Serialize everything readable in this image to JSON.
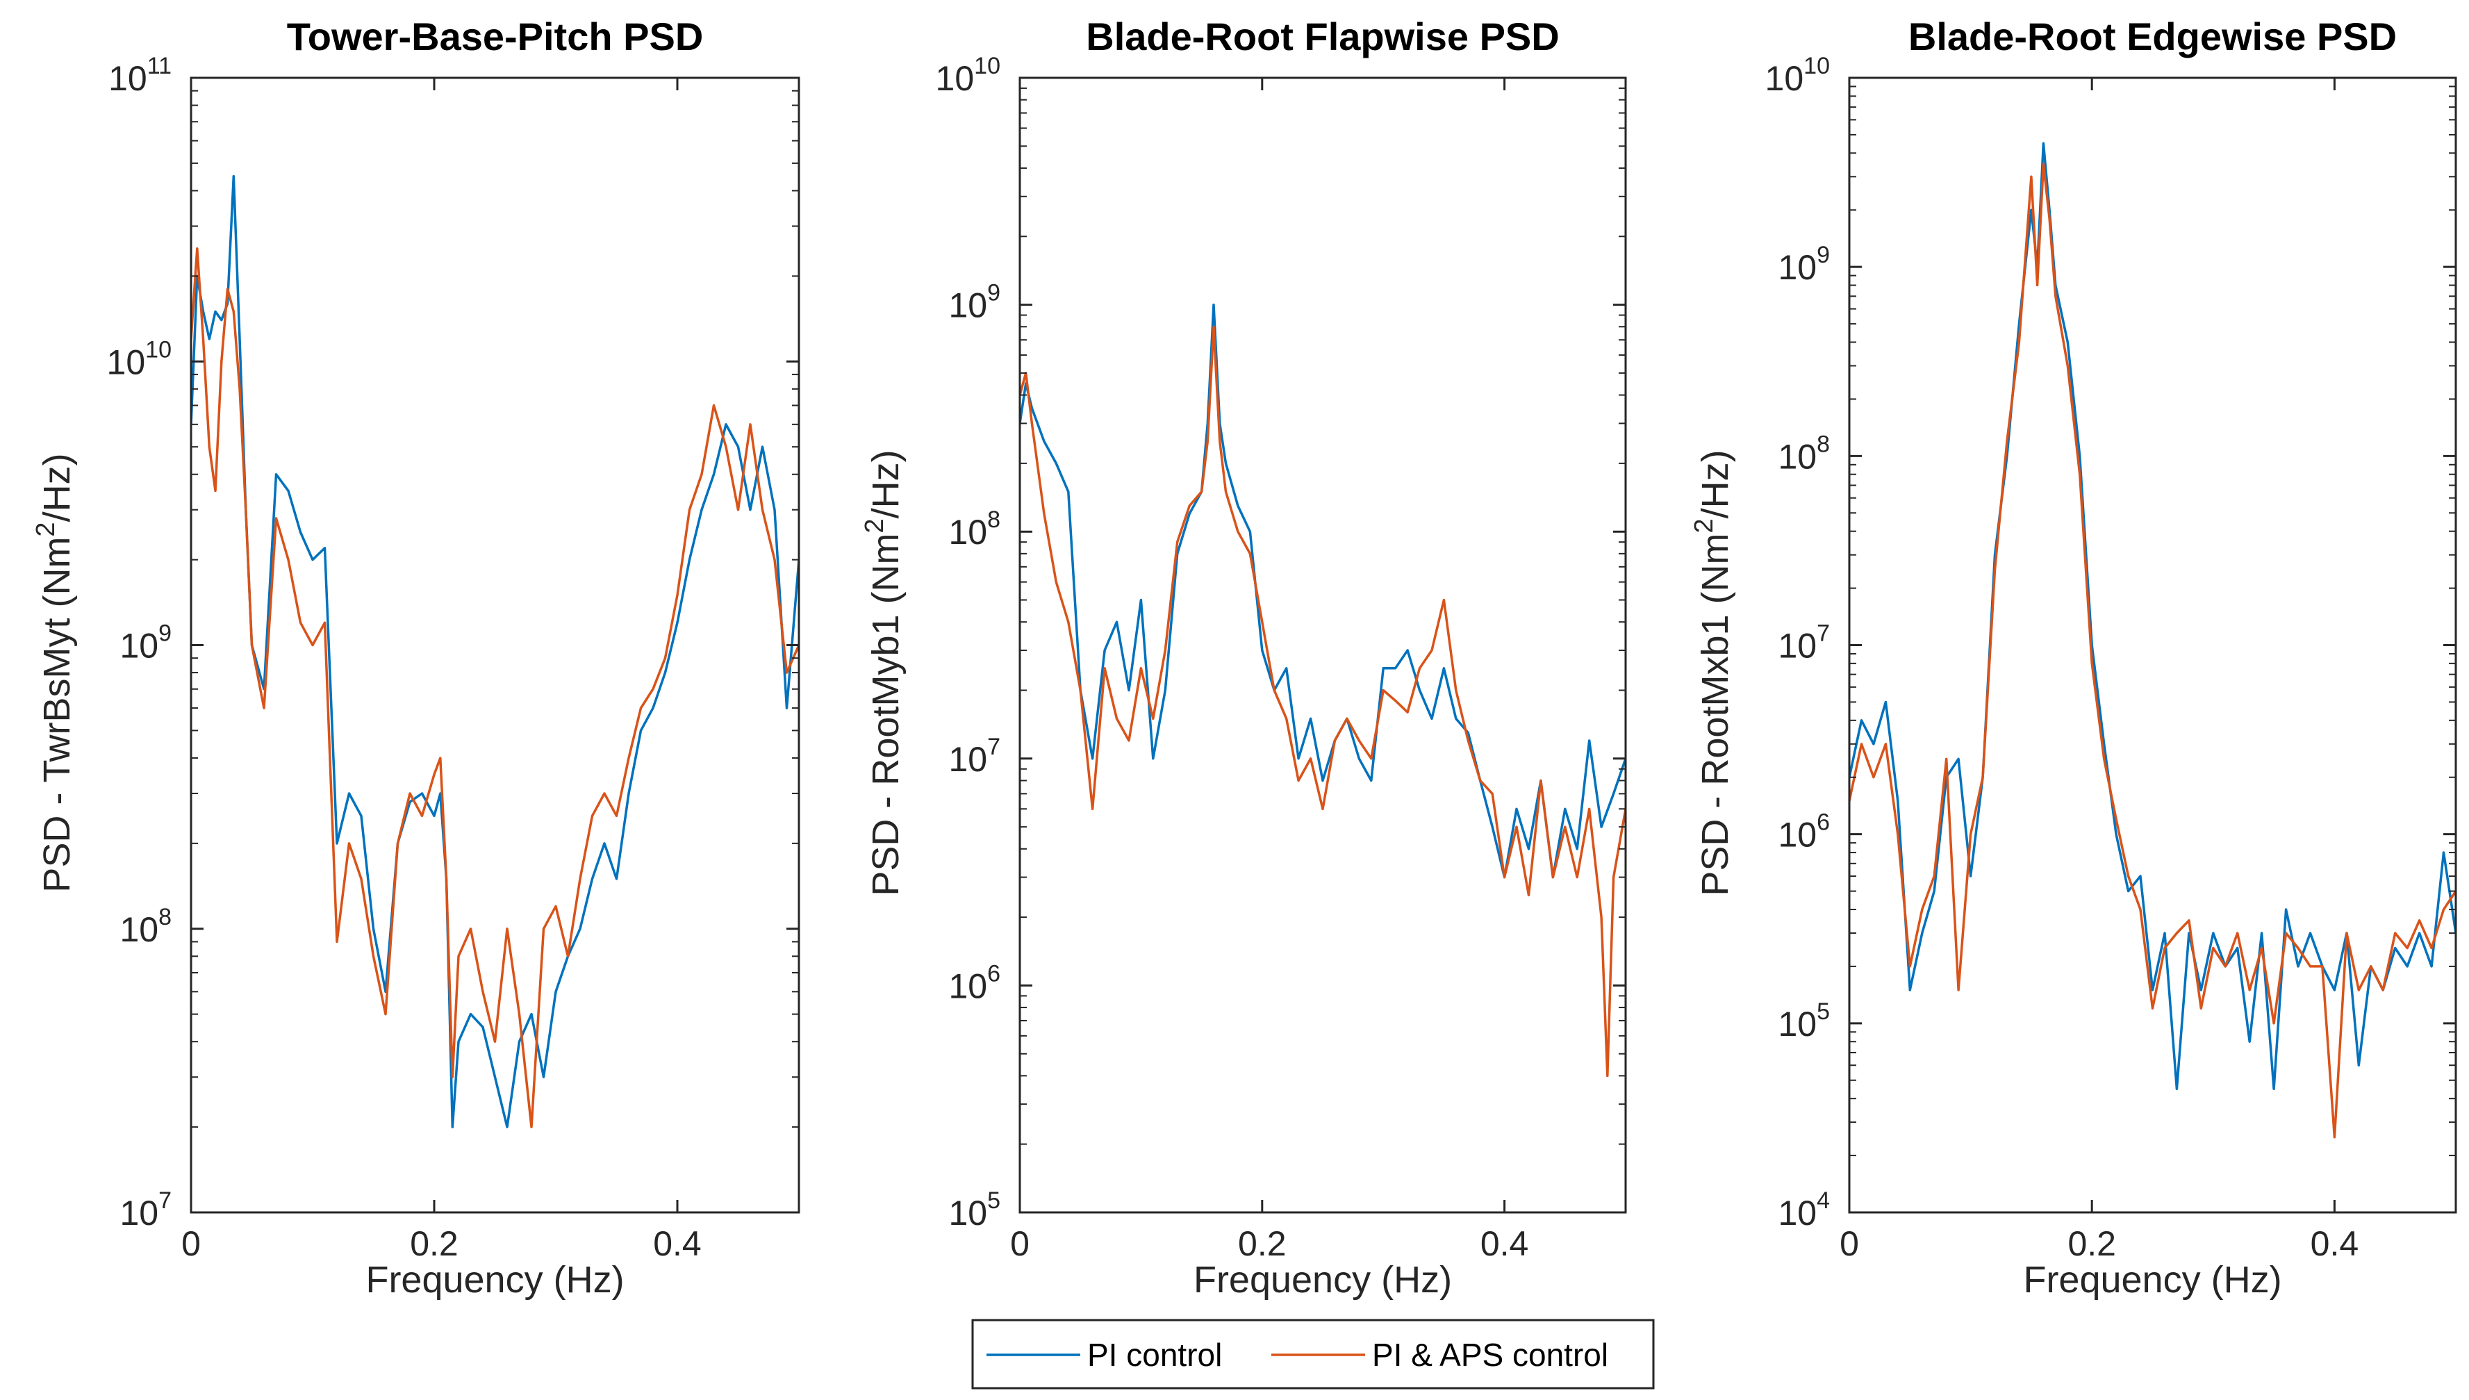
{
  "colors": {
    "pi": "#0072BD",
    "aps": "#D95319",
    "axis": "#262626"
  },
  "legend": {
    "items": [
      {
        "label": "PI control",
        "color": "#0072BD"
      },
      {
        "label": "PI & APS control",
        "color": "#D95319"
      }
    ]
  },
  "chart_data": [
    {
      "type": "line",
      "title": "Tower-Base-Pitch PSD",
      "xlabel": "Frequency (Hz)",
      "ylabel": {
        "prefix": "PSD - TwrBsMyt (Nm",
        "sup": "2",
        "suffix": "/Hz)"
      },
      "xlim": [
        0,
        0.5
      ],
      "yscale": "log",
      "ylim_exp": [
        7,
        11
      ],
      "xticks": [
        0,
        0.2,
        0.4
      ],
      "xtick_labels": [
        "0",
        "0.2",
        "0.4"
      ],
      "ytick_labels": [
        {
          "base": "10",
          "exp": "7"
        },
        {
          "base": "10",
          "exp": "8"
        },
        {
          "base": "10",
          "exp": "9"
        },
        {
          "base": "10",
          "exp": "10"
        },
        {
          "base": "10",
          "exp": "11"
        }
      ],
      "series": [
        {
          "name": "PI control",
          "x": [
            0,
            0.005,
            0.01,
            0.015,
            0.02,
            0.025,
            0.03,
            0.035,
            0.04,
            0.045,
            0.05,
            0.06,
            0.07,
            0.08,
            0.09,
            0.1,
            0.11,
            0.12,
            0.13,
            0.14,
            0.15,
            0.16,
            0.17,
            0.18,
            0.19,
            0.2,
            0.205,
            0.21,
            0.215,
            0.22,
            0.23,
            0.24,
            0.25,
            0.26,
            0.27,
            0.28,
            0.29,
            0.3,
            0.31,
            0.32,
            0.33,
            0.34,
            0.35,
            0.36,
            0.37,
            0.38,
            0.39,
            0.4,
            0.41,
            0.42,
            0.43,
            0.44,
            0.45,
            0.46,
            0.47,
            0.48,
            0.49,
            0.5
          ],
          "y": [
            6000000000.0,
            20000000000.0,
            15000000000.0,
            12000000000.0,
            15000000000.0,
            14000000000.0,
            16000000000.0,
            45000000000.0,
            12000000000.0,
            3000000000.0,
            1000000000.0,
            700000000.0,
            4000000000.0,
            3500000000.0,
            2500000000.0,
            2000000000.0,
            2200000000.0,
            200000000.0,
            300000000.0,
            250000000.0,
            100000000.0,
            60000000.0,
            200000000.0,
            280000000.0,
            300000000.0,
            250000000.0,
            300000000.0,
            150000000.0,
            20000000.0,
            40000000.0,
            50000000.0,
            45000000.0,
            30000000.0,
            20000000.0,
            40000000.0,
            50000000.0,
            30000000.0,
            60000000.0,
            80000000.0,
            100000000.0,
            150000000.0,
            200000000.0,
            150000000.0,
            300000000.0,
            500000000.0,
            600000000.0,
            800000000.0,
            1200000000.0,
            2000000000.0,
            3000000000.0,
            4000000000.0,
            6000000000.0,
            5000000000.0,
            3000000000.0,
            5000000000.0,
            3000000000.0,
            600000000.0,
            2000000000.0
          ]
        },
        {
          "name": "PI & APS control",
          "x": [
            0,
            0.005,
            0.01,
            0.015,
            0.02,
            0.025,
            0.03,
            0.035,
            0.04,
            0.045,
            0.05,
            0.06,
            0.07,
            0.08,
            0.09,
            0.1,
            0.11,
            0.12,
            0.13,
            0.14,
            0.15,
            0.16,
            0.17,
            0.18,
            0.19,
            0.2,
            0.205,
            0.21,
            0.215,
            0.22,
            0.23,
            0.24,
            0.25,
            0.26,
            0.27,
            0.28,
            0.29,
            0.3,
            0.31,
            0.32,
            0.33,
            0.34,
            0.35,
            0.36,
            0.37,
            0.38,
            0.39,
            0.4,
            0.41,
            0.42,
            0.43,
            0.44,
            0.45,
            0.46,
            0.47,
            0.48,
            0.49,
            0.5
          ],
          "y": [
            12000000000.0,
            25000000000.0,
            12000000000.0,
            5000000000.0,
            3500000000.0,
            10000000000.0,
            18000000000.0,
            15000000000.0,
            8000000000.0,
            3000000000.0,
            1000000000.0,
            600000000.0,
            2800000000.0,
            2000000000.0,
            1200000000.0,
            1000000000.0,
            1200000000.0,
            90000000.0,
            200000000.0,
            150000000.0,
            80000000.0,
            50000000.0,
            200000000.0,
            300000000.0,
            250000000.0,
            350000000.0,
            400000000.0,
            150000000.0,
            30000000.0,
            80000000.0,
            100000000.0,
            60000000.0,
            40000000.0,
            100000000.0,
            50000000.0,
            20000000.0,
            100000000.0,
            120000000.0,
            80000000.0,
            150000000.0,
            250000000.0,
            300000000.0,
            250000000.0,
            400000000.0,
            600000000.0,
            700000000.0,
            900000000.0,
            1500000000.0,
            3000000000.0,
            4000000000.0,
            7000000000.0,
            5000000000.0,
            3000000000.0,
            6000000000.0,
            3000000000.0,
            2000000000.0,
            800000000.0,
            1000000000.0
          ]
        }
      ]
    },
    {
      "type": "line",
      "title": "Blade-Root Flapwise PSD",
      "xlabel": "Frequency (Hz)",
      "ylabel": {
        "prefix": "PSD - RootMyb1 (Nm",
        "sup": "2",
        "suffix": "/Hz)"
      },
      "xlim": [
        0,
        0.5
      ],
      "yscale": "log",
      "ylim_exp": [
        5,
        10
      ],
      "xticks": [
        0,
        0.2,
        0.4
      ],
      "xtick_labels": [
        "0",
        "0.2",
        "0.4"
      ],
      "ytick_labels": [
        {
          "base": "10",
          "exp": "5"
        },
        {
          "base": "10",
          "exp": "6"
        },
        {
          "base": "10",
          "exp": "7"
        },
        {
          "base": "10",
          "exp": "8"
        },
        {
          "base": "10",
          "exp": "9"
        },
        {
          "base": "10",
          "exp": "10"
        }
      ],
      "series": [
        {
          "name": "PI control",
          "x": [
            0,
            0.005,
            0.01,
            0.02,
            0.03,
            0.04,
            0.05,
            0.06,
            0.07,
            0.08,
            0.09,
            0.1,
            0.11,
            0.12,
            0.13,
            0.14,
            0.15,
            0.155,
            0.16,
            0.165,
            0.17,
            0.18,
            0.19,
            0.2,
            0.21,
            0.22,
            0.23,
            0.24,
            0.25,
            0.26,
            0.27,
            0.28,
            0.29,
            0.3,
            0.31,
            0.32,
            0.33,
            0.34,
            0.35,
            0.36,
            0.37,
            0.38,
            0.39,
            0.4,
            0.41,
            0.42,
            0.43,
            0.44,
            0.45,
            0.46,
            0.47,
            0.48,
            0.49,
            0.5
          ],
          "y": [
            300000000.0,
            450000000.0,
            350000000.0,
            250000000.0,
            200000000.0,
            150000000.0,
            20000000.0,
            10000000.0,
            30000000.0,
            40000000.0,
            20000000.0,
            50000000.0,
            10000000.0,
            20000000.0,
            80000000.0,
            120000000.0,
            150000000.0,
            300000000.0,
            1000000000.0,
            300000000.0,
            200000000.0,
            130000000.0,
            100000000.0,
            30000000.0,
            20000000.0,
            25000000.0,
            10000000.0,
            15000000.0,
            8000000.0,
            12000000.0,
            15000000.0,
            10000000.0,
            8000000.0,
            25000000.0,
            25000000.0,
            30000000.0,
            20000000.0,
            15000000.0,
            25000000.0,
            15000000.0,
            13000000.0,
            8000000.0,
            5000000.0,
            3000000.0,
            6000000.0,
            4000000.0,
            8000000.0,
            3000000.0,
            6000000.0,
            4000000.0,
            12000000.0,
            5000000.0,
            7000000.0,
            10000000.0
          ]
        },
        {
          "name": "PI & APS control",
          "x": [
            0,
            0.005,
            0.01,
            0.02,
            0.03,
            0.04,
            0.05,
            0.06,
            0.07,
            0.08,
            0.09,
            0.1,
            0.11,
            0.12,
            0.13,
            0.14,
            0.15,
            0.155,
            0.16,
            0.165,
            0.17,
            0.18,
            0.19,
            0.2,
            0.21,
            0.22,
            0.23,
            0.24,
            0.25,
            0.26,
            0.27,
            0.28,
            0.29,
            0.3,
            0.31,
            0.32,
            0.33,
            0.34,
            0.35,
            0.36,
            0.37,
            0.38,
            0.39,
            0.4,
            0.41,
            0.42,
            0.43,
            0.44,
            0.45,
            0.46,
            0.47,
            0.48,
            0.485,
            0.49,
            0.5
          ],
          "y": [
            400000000.0,
            500000000.0,
            300000000.0,
            120000000.0,
            60000000.0,
            40000000.0,
            20000000.0,
            6000000.0,
            25000000.0,
            15000000.0,
            12000000.0,
            25000000.0,
            15000000.0,
            30000000.0,
            90000000.0,
            130000000.0,
            150000000.0,
            250000000.0,
            800000000.0,
            250000000.0,
            150000000.0,
            100000000.0,
            80000000.0,
            40000000.0,
            20000000.0,
            15000000.0,
            8000000.0,
            10000000.0,
            6000000.0,
            12000000.0,
            15000000.0,
            12000000.0,
            10000000.0,
            20000000.0,
            18000000.0,
            16000000.0,
            25000000.0,
            30000000.0,
            50000000.0,
            20000000.0,
            12000000.0,
            8000000.0,
            7000000.0,
            3000000.0,
            5000000.0,
            2500000.0,
            8000000.0,
            3000000.0,
            5000000.0,
            3000000.0,
            6000000.0,
            2000000.0,
            400000.0,
            3000000.0,
            6000000.0
          ]
        }
      ]
    },
    {
      "type": "line",
      "title": "Blade-Root Edgewise PSD",
      "xlabel": "Frequency (Hz)",
      "ylabel": {
        "prefix": "PSD - RootMxb1 (Nm",
        "sup": "2",
        "suffix": "/Hz)"
      },
      "xlim": [
        0,
        0.5
      ],
      "yscale": "log",
      "ylim_exp": [
        4,
        10
      ],
      "xticks": [
        0,
        0.2,
        0.4
      ],
      "xtick_labels": [
        "0",
        "0.2",
        "0.4"
      ],
      "ytick_labels": [
        {
          "base": "10",
          "exp": "4"
        },
        {
          "base": "10",
          "exp": "5"
        },
        {
          "base": "10",
          "exp": "6"
        },
        {
          "base": "10",
          "exp": "7"
        },
        {
          "base": "10",
          "exp": "8"
        },
        {
          "base": "10",
          "exp": "9"
        },
        {
          "base": "10",
          "exp": "10"
        }
      ],
      "series": [
        {
          "name": "PI control",
          "x": [
            0,
            0.01,
            0.02,
            0.03,
            0.04,
            0.05,
            0.06,
            0.07,
            0.08,
            0.09,
            0.1,
            0.11,
            0.12,
            0.13,
            0.14,
            0.15,
            0.155,
            0.16,
            0.165,
            0.17,
            0.18,
            0.19,
            0.2,
            0.21,
            0.22,
            0.23,
            0.24,
            0.25,
            0.26,
            0.27,
            0.28,
            0.29,
            0.3,
            0.31,
            0.32,
            0.33,
            0.34,
            0.35,
            0.36,
            0.37,
            0.38,
            0.39,
            0.4,
            0.41,
            0.42,
            0.43,
            0.44,
            0.45,
            0.46,
            0.47,
            0.48,
            0.49,
            0.5
          ],
          "y": [
            2000000.0,
            4000000.0,
            3000000.0,
            5000000.0,
            1500000.0,
            150000.0,
            300000.0,
            500000.0,
            2000000.0,
            2500000.0,
            600000.0,
            2000000.0,
            30000000.0,
            100000000.0,
            500000000.0,
            2000000000.0,
            1000000000.0,
            4500000000.0,
            2000000000.0,
            800000000.0,
            400000000.0,
            100000000.0,
            10000000.0,
            3000000.0,
            1000000.0,
            500000.0,
            600000.0,
            150000.0,
            300000.0,
            45000.0,
            300000.0,
            150000.0,
            300000.0,
            200000.0,
            250000.0,
            80000.0,
            300000.0,
            45000.0,
            400000.0,
            200000.0,
            300000.0,
            200000.0,
            150000.0,
            300000.0,
            60000.0,
            200000.0,
            150000.0,
            250000.0,
            200000.0,
            300000.0,
            200000.0,
            800000.0,
            300000.0
          ]
        },
        {
          "name": "PI & APS control",
          "x": [
            0,
            0.01,
            0.02,
            0.03,
            0.04,
            0.05,
            0.06,
            0.07,
            0.08,
            0.09,
            0.1,
            0.11,
            0.12,
            0.13,
            0.14,
            0.15,
            0.155,
            0.16,
            0.165,
            0.17,
            0.18,
            0.19,
            0.2,
            0.21,
            0.22,
            0.23,
            0.24,
            0.25,
            0.26,
            0.27,
            0.28,
            0.29,
            0.3,
            0.31,
            0.32,
            0.33,
            0.34,
            0.35,
            0.36,
            0.37,
            0.38,
            0.39,
            0.4,
            0.41,
            0.42,
            0.43,
            0.44,
            0.45,
            0.46,
            0.47,
            0.48,
            0.49,
            0.5
          ],
          "y": [
            1500000.0,
            3000000.0,
            2000000.0,
            3000000.0,
            1000000.0,
            200000.0,
            400000.0,
            600000.0,
            2500000.0,
            150000.0,
            1000000.0,
            2000000.0,
            25000000.0,
            120000000.0,
            400000000.0,
            3000000000.0,
            800000000.0,
            3500000000.0,
            1800000000.0,
            700000000.0,
            300000000.0,
            80000000.0,
            8000000.0,
            2500000.0,
            1200000.0,
            600000.0,
            400000.0,
            120000.0,
            250000.0,
            300000.0,
            350000.0,
            120000.0,
            250000.0,
            200000.0,
            300000.0,
            150000.0,
            250000.0,
            100000.0,
            300000.0,
            250000.0,
            200000.0,
            200000.0,
            25000.0,
            300000.0,
            150000.0,
            200000.0,
            150000.0,
            300000.0,
            250000.0,
            350000.0,
            250000.0,
            400000.0,
            500000.0
          ]
        }
      ]
    }
  ]
}
